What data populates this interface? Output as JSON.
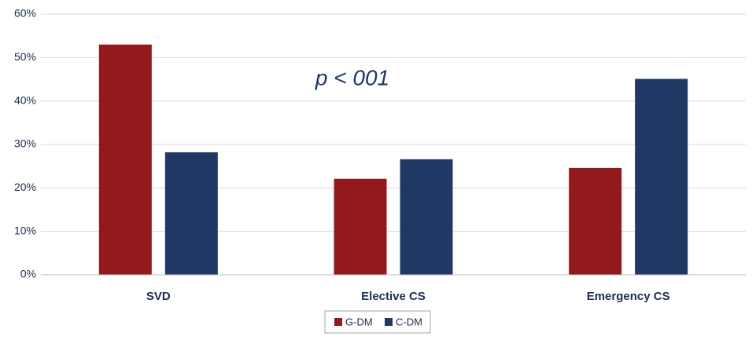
{
  "chart_data": {
    "type": "bar",
    "annotation": "p < 001",
    "categories": [
      "SVD",
      "Elective CS",
      "Emergency CS"
    ],
    "series": [
      {
        "name": "G-DM",
        "color": "#921a1d",
        "values": [
          53,
          22.1,
          24.6
        ]
      },
      {
        "name": "C-DM",
        "color": "#203864",
        "values": [
          28.2,
          26.6,
          45.1
        ]
      }
    ],
    "ylim": [
      0,
      60
    ],
    "yticks": [
      {
        "value": 0,
        "label": "0%"
      },
      {
        "value": 10,
        "label": "10%"
      },
      {
        "value": 20,
        "label": "20%"
      },
      {
        "value": 30,
        "label": "30%"
      },
      {
        "value": 40,
        "label": "40%"
      },
      {
        "value": 50,
        "label": "50%"
      },
      {
        "value": 60,
        "label": "60%"
      }
    ],
    "grid": true,
    "legend": "bottom"
  }
}
